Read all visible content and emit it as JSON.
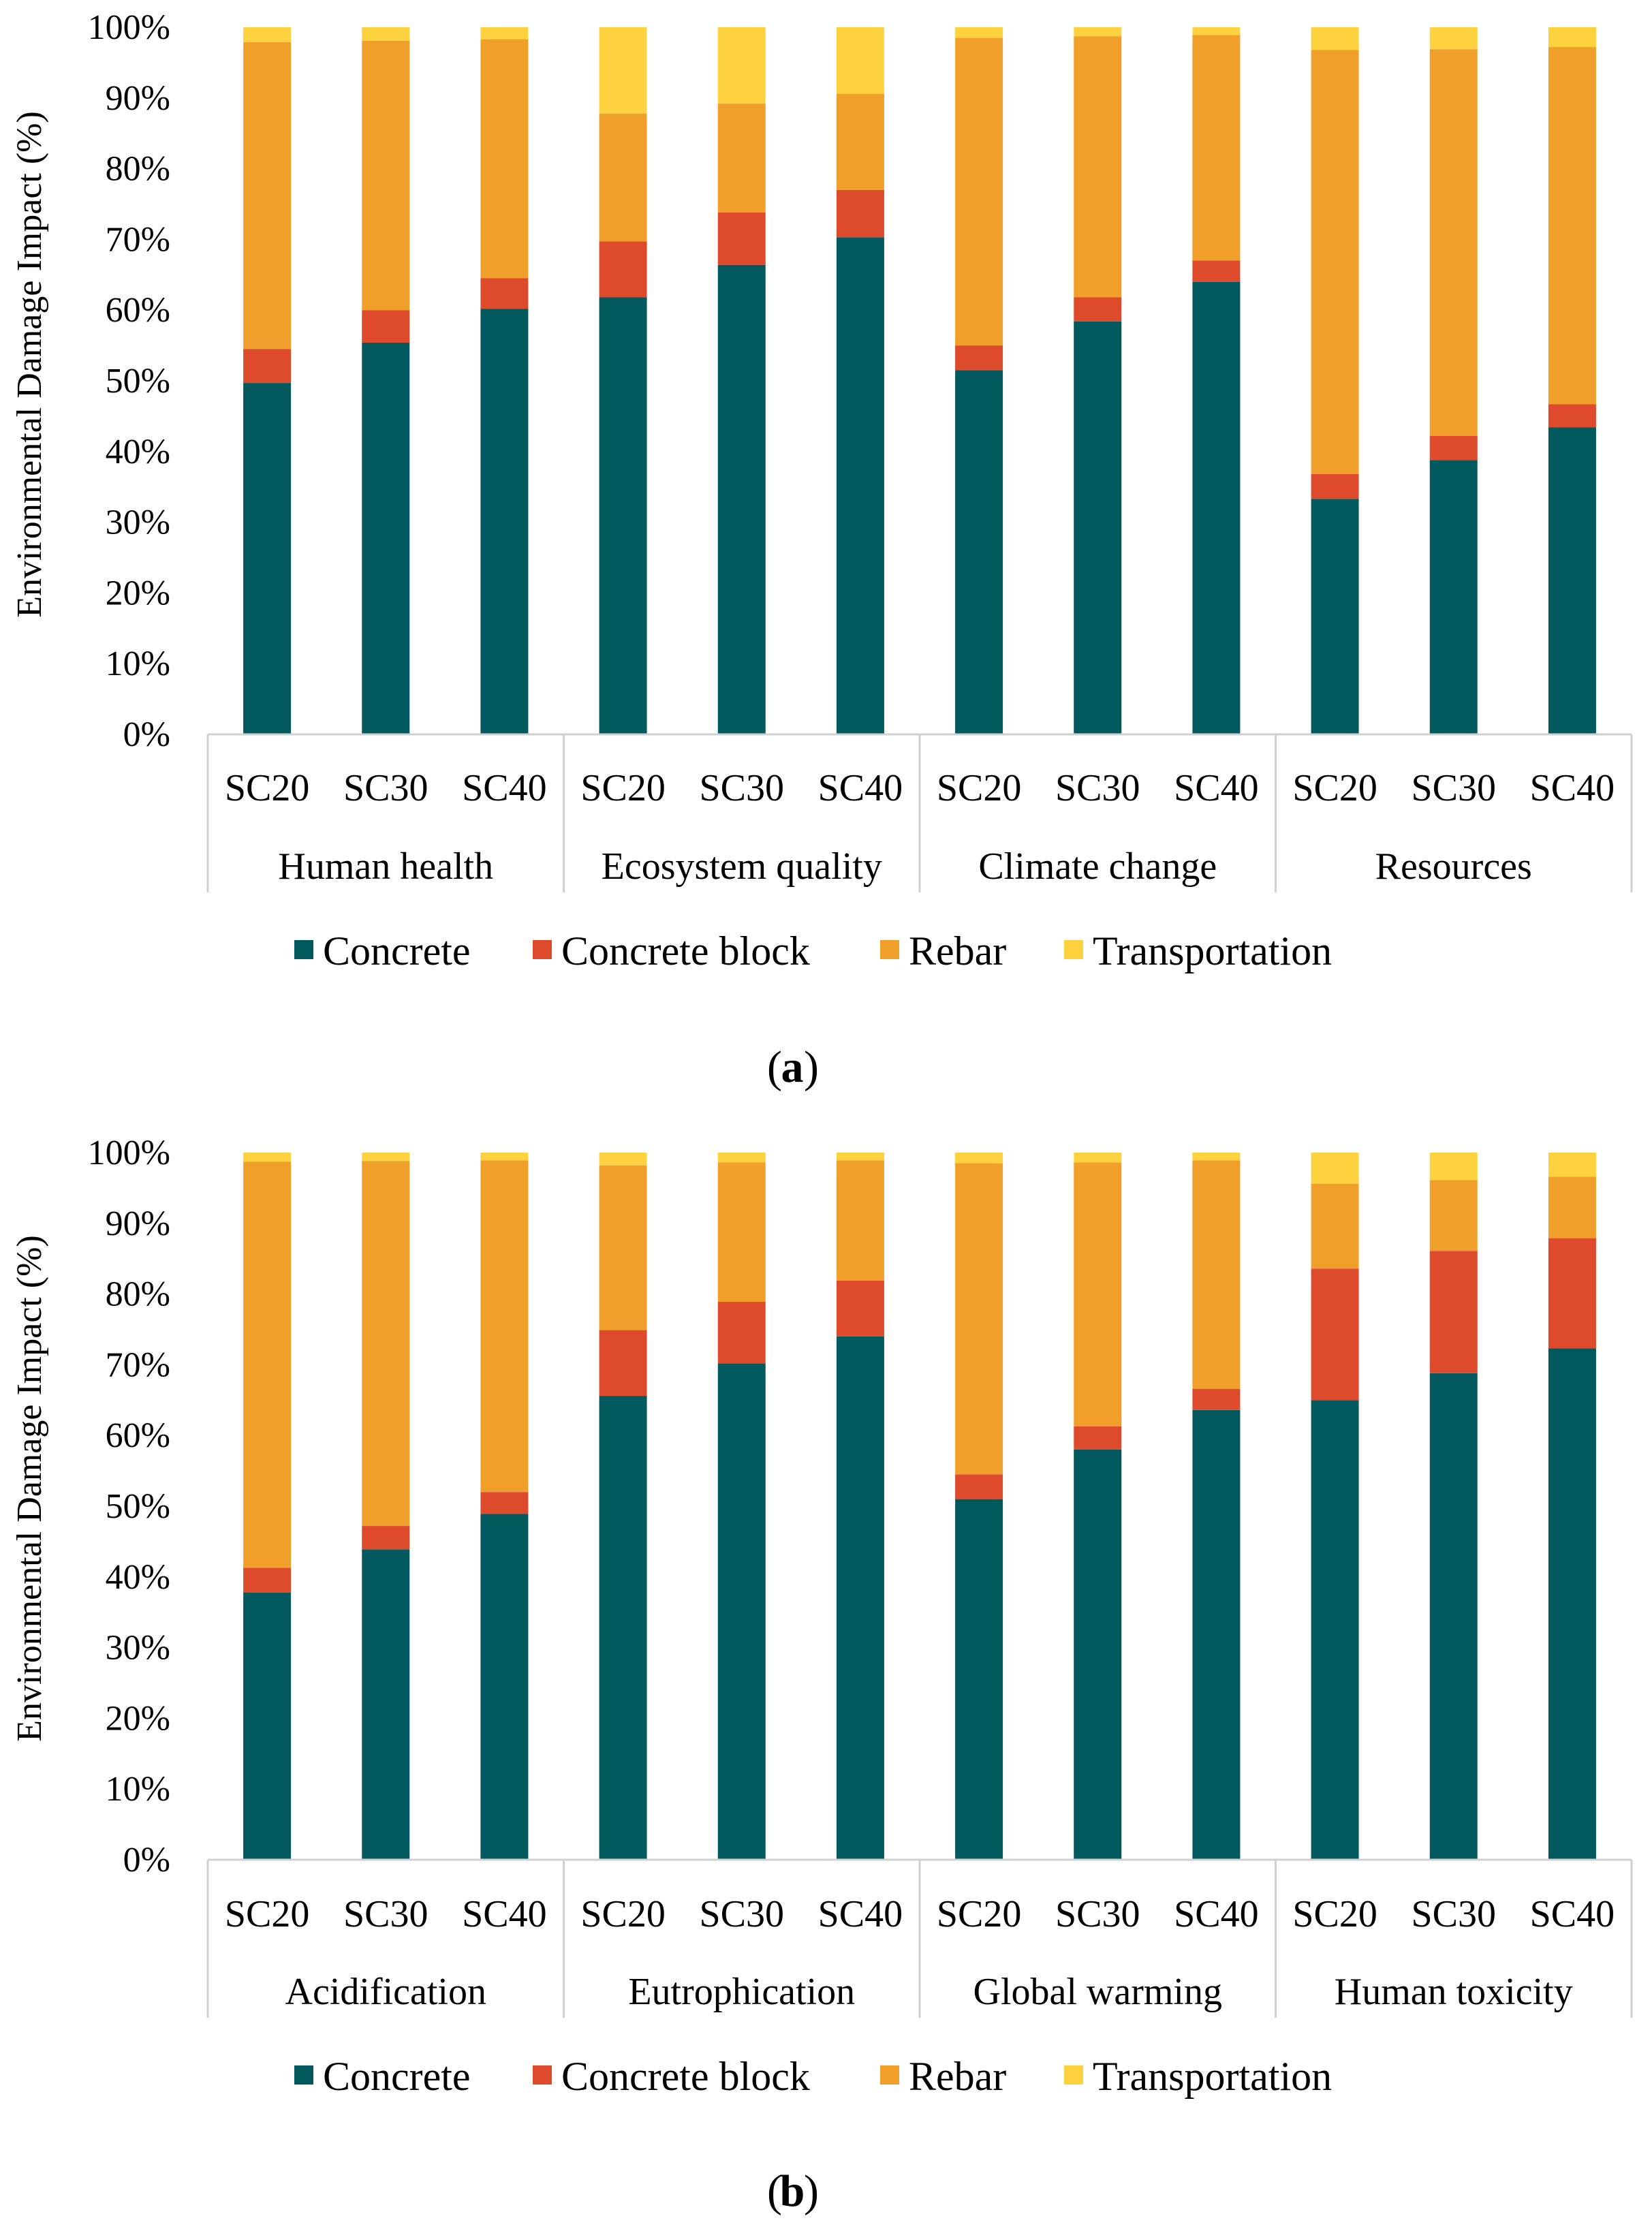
{
  "legend": [
    "Concrete",
    "Concrete block",
    "Rebar",
    "Transportation"
  ],
  "colors": {
    "Concrete": "#025a5e",
    "Concrete block": "#de4a2c",
    "Rebar": "#f0a02a",
    "Transportation": "#fdd23e"
  },
  "chart_data": [
    {
      "type": "bar",
      "stacked": true,
      "caption": "a",
      "ylabel": "Environmental Damage Impact (%)",
      "ylim": [
        0,
        100
      ],
      "yticks": [
        "0%",
        "10%",
        "20%",
        "30%",
        "40%",
        "50%",
        "60%",
        "70%",
        "80%",
        "90%",
        "100%"
      ],
      "subcategories": [
        "SC20",
        "SC30",
        "SC40"
      ],
      "groups": [
        "Human health",
        "Ecosystem quality",
        "Climate change",
        "Resources"
      ],
      "series": [
        {
          "name": "Concrete",
          "values": [
            49.7,
            55.4,
            60.2,
            61.8,
            66.4,
            70.3,
            51.5,
            58.4,
            64.0,
            33.3,
            38.8,
            43.4
          ]
        },
        {
          "name": "Concrete block",
          "values": [
            4.8,
            4.6,
            4.3,
            7.9,
            7.4,
            6.7,
            3.5,
            3.4,
            3.0,
            3.5,
            3.4,
            3.3
          ]
        },
        {
          "name": "Rebar",
          "values": [
            43.4,
            38.1,
            33.8,
            18.1,
            15.4,
            13.6,
            43.5,
            36.9,
            31.9,
            60.0,
            54.7,
            50.5
          ]
        },
        {
          "name": "Transportation",
          "values": [
            2.1,
            1.9,
            1.7,
            12.2,
            10.8,
            9.4,
            1.5,
            1.3,
            1.1,
            3.2,
            3.1,
            2.8
          ]
        }
      ]
    },
    {
      "type": "bar",
      "stacked": true,
      "caption": "b",
      "ylabel": "Environmental Damage Impact (%)",
      "ylim": [
        0,
        100
      ],
      "yticks": [
        "0%",
        "10%",
        "20%",
        "30%",
        "40%",
        "50%",
        "60%",
        "70%",
        "80%",
        "90%",
        "100%"
      ],
      "subcategories": [
        "SC20",
        "SC30",
        "SC40"
      ],
      "groups": [
        "Acidification",
        "Eutrophication",
        "Global warming",
        "Human toxicity"
      ],
      "series": [
        {
          "name": "Concrete",
          "values": [
            37.8,
            43.9,
            48.9,
            65.6,
            70.2,
            74.0,
            51.0,
            58.0,
            63.6,
            65.0,
            68.8,
            72.3
          ]
        },
        {
          "name": "Concrete block",
          "values": [
            3.5,
            3.3,
            3.1,
            9.3,
            8.7,
            7.9,
            3.5,
            3.3,
            3.0,
            18.6,
            17.3,
            15.6
          ]
        },
        {
          "name": "Rebar",
          "values": [
            57.4,
            51.6,
            46.9,
            23.3,
            19.7,
            17.0,
            44.0,
            37.3,
            32.3,
            12.0,
            10.0,
            8.7
          ]
        },
        {
          "name": "Transportation",
          "values": [
            1.3,
            1.2,
            1.1,
            1.8,
            1.4,
            1.1,
            1.5,
            1.4,
            1.1,
            4.4,
            3.9,
            3.4
          ]
        }
      ]
    }
  ]
}
